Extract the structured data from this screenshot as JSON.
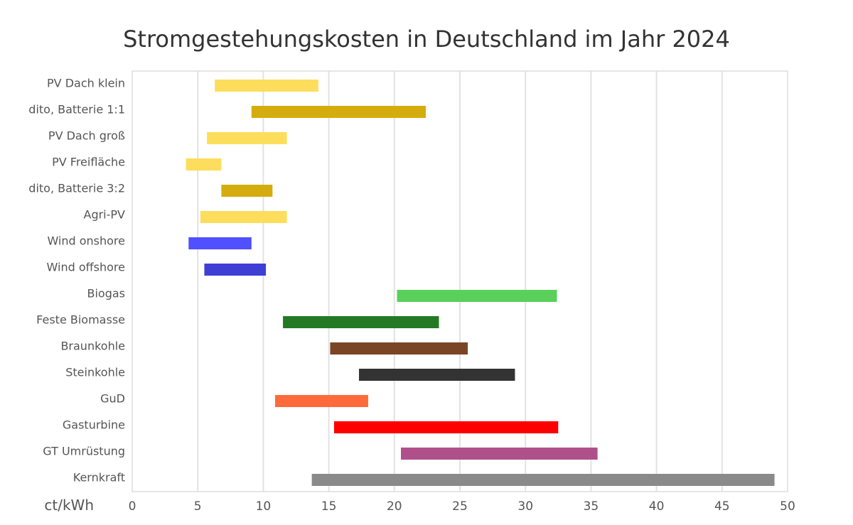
{
  "chart_data": {
    "type": "bar",
    "orientation": "horizontal-range",
    "title": "Stromgestehungskosten in Deutschland im Jahr 2024",
    "xlabel": "ct/kWh",
    "xlim": [
      0,
      50
    ],
    "xticks": [
      0,
      5,
      10,
      15,
      20,
      25,
      30,
      35,
      40,
      45,
      50
    ],
    "grid": "vertical",
    "categories": [
      "PV Dach klein",
      "dito, Batterie 1:1",
      "PV Dach groß",
      "PV Freifläche",
      "dito, Batterie 3:2",
      "Agri-PV",
      "Wind onshore",
      "Wind offshore",
      "Biogas",
      "Feste Biomasse",
      "Braunkohle",
      "Steinkohle",
      "GuD",
      "Gasturbine",
      "GT Umrüstung",
      "Kernkraft"
    ],
    "ranges": [
      {
        "low": 6.3,
        "high": 14.2,
        "color": "#FDDD5C"
      },
      {
        "low": 9.1,
        "high": 22.4,
        "color": "#D4AC0D"
      },
      {
        "low": 5.7,
        "high": 11.8,
        "color": "#FDDD5C"
      },
      {
        "low": 4.1,
        "high": 6.8,
        "color": "#FDDD5C"
      },
      {
        "low": 6.8,
        "high": 10.7,
        "color": "#D4AC0D"
      },
      {
        "low": 5.2,
        "high": 11.8,
        "color": "#FDDD5C"
      },
      {
        "low": 4.3,
        "high": 9.1,
        "color": "#5050FF"
      },
      {
        "low": 5.5,
        "high": 10.2,
        "color": "#3F3FD6"
      },
      {
        "low": 20.2,
        "high": 32.4,
        "color": "#5AD05A"
      },
      {
        "low": 11.5,
        "high": 23.4,
        "color": "#247A24"
      },
      {
        "low": 15.1,
        "high": 25.6,
        "color": "#7A4525"
      },
      {
        "low": 17.3,
        "high": 29.2,
        "color": "#333333"
      },
      {
        "low": 10.9,
        "high": 18.0,
        "color": "#FF6A3A"
      },
      {
        "low": 15.4,
        "high": 32.5,
        "color": "#FF0000"
      },
      {
        "low": 20.5,
        "high": 35.5,
        "color": "#B0508A"
      },
      {
        "low": 13.7,
        "high": 49.0,
        "color": "#8A8A8A"
      }
    ]
  }
}
